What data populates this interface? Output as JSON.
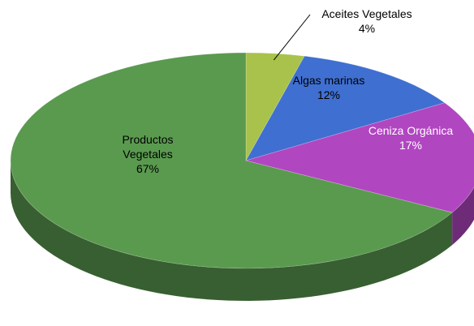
{
  "chart_data": {
    "type": "pie",
    "style": "3d",
    "title": "",
    "slices": [
      {
        "name": "Aceites Vegetales",
        "label_lines": [
          "Aceites Vegetales"
        ],
        "percent_label": "4%",
        "value": 4,
        "color": "#a9c24b",
        "label_color": "#000000",
        "label_position": "outside-leader"
      },
      {
        "name": "Algas marinas",
        "label_lines": [
          "Algas marinas"
        ],
        "percent_label": "12%",
        "value": 12,
        "color": "#3f6fd0",
        "label_color": "#000000",
        "label_position": "inside"
      },
      {
        "name": "Ceniza Orgánica",
        "label_lines": [
          "Ceniza Orgánica"
        ],
        "percent_label": "17%",
        "value": 17,
        "color": "#b146c1",
        "label_color": "#ffffff",
        "label_position": "inside"
      },
      {
        "name": "Productos Vegetales",
        "label_lines": [
          "Productos",
          "Vegetales"
        ],
        "percent_label": "67%",
        "value": 67,
        "color": "#5a9a4f",
        "label_color": "#000000",
        "label_position": "inside"
      }
    ],
    "legend": "none"
  }
}
